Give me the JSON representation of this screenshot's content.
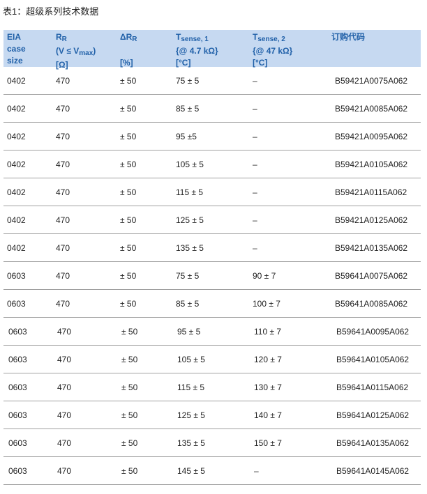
{
  "title": "表1：超级系列技术数据",
  "header": {
    "eia": [
      "EIA",
      "case",
      "size"
    ],
    "rr": {
      "main": "R",
      "sub": "R",
      "line2a": "(V ≤ V",
      "line2sub": "max",
      "line2b": ")",
      "unit": "[Ω]"
    },
    "drr": {
      "main": "ΔR",
      "sub": "R",
      "unit": "[%]"
    },
    "t1": {
      "main": "T",
      "sub": "sense, 1",
      "cond": "{@ 4.7 kΩ}",
      "unit": "[°C]"
    },
    "t2": {
      "main": "T",
      "sub": "sense, 2",
      "cond": "{@ 47 kΩ}",
      "unit": "[°C]"
    },
    "order": "订购代码"
  },
  "colors": {
    "header_bg": "#c6d9f1",
    "header_text": "#2060a8"
  },
  "rows": [
    [
      "0402",
      "470",
      "± 50",
      "75 ± 5",
      "–",
      "B59421A0075A062"
    ],
    [
      "0402",
      "470",
      "± 50",
      "85 ± 5",
      "–",
      "B59421A0085A062"
    ],
    [
      "0402",
      "470",
      "± 50",
      "95 ±5",
      "–",
      "B59421A0095A062"
    ],
    [
      "0402",
      "470",
      "± 50",
      "105 ± 5",
      "–",
      "B59421A0105A062"
    ],
    [
      "0402",
      "470",
      "± 50",
      "115 ± 5",
      "–",
      "B59421A0115A062"
    ],
    [
      "0402",
      "470",
      "± 50",
      "125 ± 5",
      "–",
      "B59421A0125A062"
    ],
    [
      "0402",
      "470",
      "± 50",
      "135 ± 5",
      "–",
      "B59421A0135A062"
    ],
    [
      "0603",
      "470",
      "± 50",
      "75 ± 5",
      "90 ± 7",
      "B59641A0075A062"
    ],
    [
      "0603",
      "470",
      "± 50",
      "85 ± 5",
      "100 ± 7",
      "B59641A0085A062"
    ],
    [
      "0603",
      "470",
      "± 50",
      "95 ± 5",
      "110 ± 7",
      "B59641A0095A062"
    ],
    [
      "0603",
      "470",
      "± 50",
      "105 ± 5",
      "120 ± 7",
      "B59641A0105A062"
    ],
    [
      "0603",
      "470",
      "± 50",
      "115 ± 5",
      "130 ± 7",
      "B59641A0115A062"
    ],
    [
      "0603",
      "470",
      "± 50",
      "125 ± 5",
      "140 ± 7",
      "B59641A0125A062"
    ],
    [
      "0603",
      "470",
      "± 50",
      "135 ± 5",
      "150 ± 7",
      "B59641A0135A062"
    ],
    [
      "0603",
      "470",
      "± 50",
      "145 ± 5",
      "–",
      "B59641A0145A062"
    ]
  ]
}
